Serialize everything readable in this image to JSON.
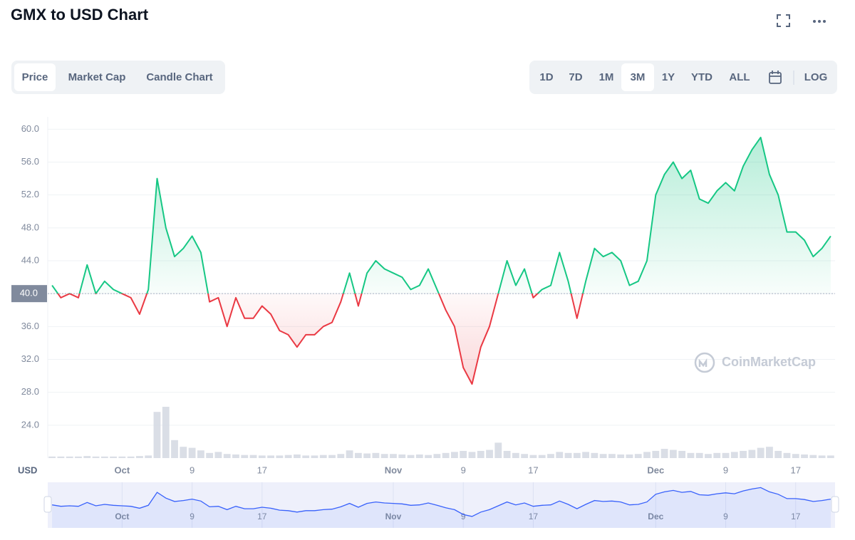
{
  "header": {
    "title": "GMX to USD Chart"
  },
  "tabs": {
    "items": [
      "Price",
      "Market Cap",
      "Candle Chart"
    ],
    "selected": 0
  },
  "ranges": {
    "items": [
      "1D",
      "7D",
      "1M",
      "3M",
      "1Y",
      "YTD",
      "ALL"
    ],
    "selected": 3,
    "log": "LOG"
  },
  "watermark": "CoinMarketCap",
  "chart_data": {
    "type": "line",
    "y_label": "USD",
    "values": [
      41,
      39.5,
      40,
      39.5,
      43.5,
      40,
      41.5,
      40.5,
      40,
      39.5,
      37.5,
      40.5,
      54,
      48,
      44.5,
      45.5,
      47,
      45,
      39,
      39.5,
      36,
      39.5,
      37,
      37,
      38.5,
      37.5,
      35.5,
      35,
      33.5,
      35,
      35,
      36,
      36.5,
      39,
      42.5,
      38.5,
      42.5,
      44,
      43,
      42.5,
      42,
      40.5,
      41,
      43,
      40.5,
      38,
      36,
      31,
      29,
      33.5,
      36,
      40,
      44,
      41,
      43,
      39.5,
      40.5,
      41,
      45,
      41.5,
      37,
      41.5,
      45.5,
      44.5,
      45,
      44,
      41,
      41.5,
      44,
      52,
      54.5,
      56,
      54,
      55,
      51.5,
      51,
      52.5,
      53.5,
      52.5,
      55.5,
      57.5,
      59,
      54.5,
      52,
      47.5,
      47.5,
      46.5,
      44.5,
      45.5,
      47
    ],
    "volume": [
      3,
      3,
      3,
      3,
      4,
      3,
      3,
      3,
      3,
      3,
      4,
      5,
      90,
      100,
      35,
      22,
      20,
      15,
      10,
      12,
      8,
      7,
      6,
      6,
      5,
      5,
      5,
      6,
      7,
      5,
      5,
      6,
      6,
      8,
      15,
      10,
      9,
      10,
      8,
      8,
      7,
      6,
      7,
      6,
      8,
      10,
      12,
      14,
      12,
      14,
      16,
      30,
      14,
      10,
      8,
      6,
      6,
      8,
      12,
      10,
      10,
      12,
      10,
      8,
      8,
      7,
      7,
      8,
      12,
      14,
      18,
      16,
      14,
      10,
      10,
      8,
      10,
      10,
      12,
      14,
      16,
      20,
      22,
      14,
      10,
      8,
      7,
      6,
      5,
      5
    ],
    "xlim": [
      -0.5,
      89.5
    ],
    "xticks": [
      {
        "value": 8,
        "label": "Oct"
      },
      {
        "value": 16,
        "label": "9"
      },
      {
        "value": 24,
        "label": "17"
      },
      {
        "value": 39,
        "label": "Nov"
      },
      {
        "value": 47,
        "label": "9"
      },
      {
        "value": 55,
        "label": "17"
      },
      {
        "value": 69,
        "label": "Dec"
      },
      {
        "value": 77,
        "label": "9"
      },
      {
        "value": 85,
        "label": "17"
      }
    ],
    "ylim": [
      20,
      61.5
    ],
    "yticks": [
      {
        "value": 24,
        "label": "24.0"
      },
      {
        "value": 28,
        "label": "28.0"
      },
      {
        "value": 32,
        "label": "32.0"
      },
      {
        "value": 36,
        "label": "36.0"
      },
      {
        "value": 40,
        "label": "40.0"
      },
      {
        "value": 44,
        "label": "44.0"
      },
      {
        "value": 48,
        "label": "48.0"
      },
      {
        "value": 52,
        "label": "52.0"
      },
      {
        "value": 56,
        "label": "56.0"
      },
      {
        "value": 60,
        "label": "60.0"
      }
    ],
    "baseline": {
      "value": 40,
      "label": "40.0"
    },
    "up_color": "#16c784",
    "down_color": "#ea3943",
    "navigator_color": "#3861fb",
    "grid": true
  }
}
